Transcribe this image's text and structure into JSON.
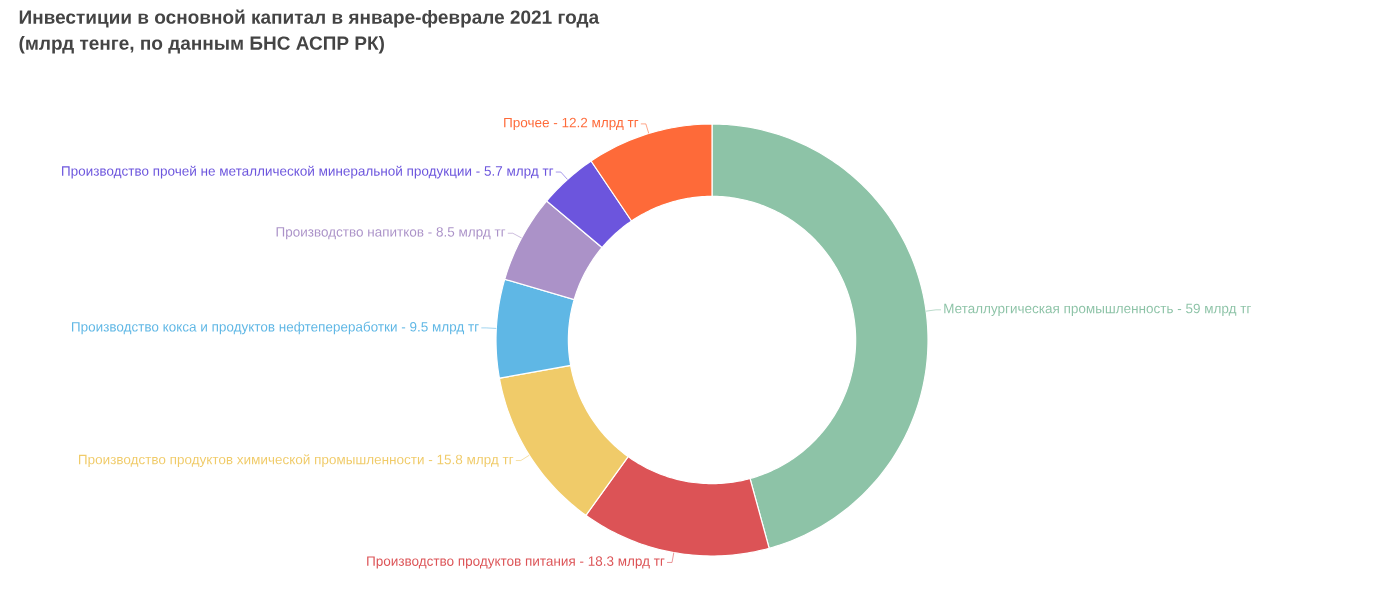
{
  "chart_data": {
    "type": "donut",
    "title": "Инвестиции в основной капитал в январе-феврале 2021 года",
    "subtitle": "(млрд тенге, по данным БНС АСПР РК)",
    "categories": [
      "Металлургическая промышленность -",
      "Производство продуктов питания -",
      "Производство продуктов химической промышленности -",
      "Производство кокса и продуктов нефтепереработки -",
      "Производство напитков -",
      "Производство прочей не металлической минеральной продукции -",
      "Прочее -"
    ],
    "values": [
      59,
      18.3,
      15.8,
      9.5,
      8.5,
      5.7,
      12.2
    ],
    "value_labels": [
      "59 млрд тг",
      "18.3 млрд тг",
      "15.8 млрд тг",
      "9.5 млрд тг",
      "8.5 млрд тг",
      "5.7 млрд тг",
      "12.2 млрд тг"
    ],
    "colors": [
      "#8dc3a7",
      "#dc5356",
      "#f0cb69",
      "#5fb7e5",
      "#ab92c8",
      "#6c55dd",
      "#fe6a39"
    ]
  }
}
